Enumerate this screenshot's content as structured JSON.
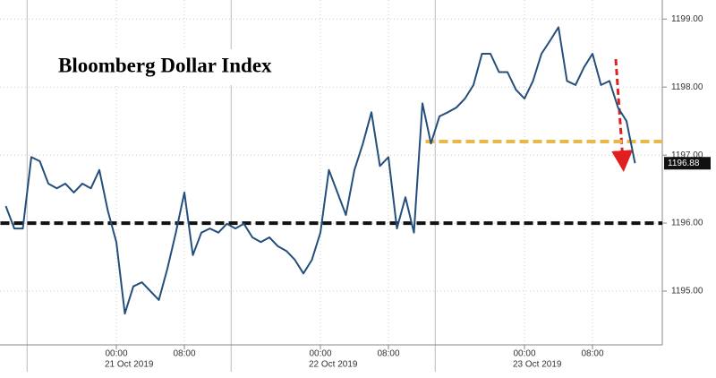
{
  "chart_data": {
    "type": "line",
    "title": "Bloomberg Dollar Index",
    "categories": [
      null,
      null,
      null,
      null,
      null,
      null,
      null,
      null,
      null,
      null,
      null,
      null,
      null,
      "00:00",
      null,
      null,
      null,
      null,
      null,
      null,
      null,
      "08:00",
      null,
      null,
      null,
      null,
      null,
      null,
      null,
      null,
      null,
      null,
      null,
      null,
      null,
      null,
      null,
      "00:00",
      null,
      null,
      null,
      null,
      null,
      null,
      null,
      "08:00",
      null,
      null,
      null,
      null,
      null,
      null,
      null,
      null,
      null,
      null,
      null,
      null,
      null,
      null,
      null,
      "00:00",
      null,
      null,
      null,
      null,
      null,
      null,
      null,
      "08:00",
      null,
      null,
      null,
      null,
      null
    ],
    "date_labels": [
      "21 Oct 2019",
      "22 Oct 2019",
      "23 Oct 2019"
    ],
    "series": [
      {
        "name": "Bloomberg Dollar Index",
        "color": "#244f7c",
        "values": [
          1196.25,
          1195.92,
          1195.92,
          1196.97,
          1196.91,
          1196.58,
          1196.51,
          1196.58,
          1196.45,
          1196.58,
          1196.51,
          1196.78,
          1196.18,
          1195.72,
          1194.67,
          1195.07,
          1195.13,
          1195.0,
          1194.87,
          1195.33,
          1195.86,
          1196.45,
          1195.53,
          1195.86,
          1195.92,
          1195.86,
          1195.99,
          1195.92,
          1195.99,
          1195.79,
          1195.72,
          1195.79,
          1195.66,
          1195.59,
          1195.46,
          1195.26,
          1195.46,
          1195.86,
          1196.78,
          1196.45,
          1196.12,
          1196.78,
          1197.17,
          1197.63,
          1196.84,
          1196.97,
          1195.92,
          1196.38,
          1195.86,
          1197.76,
          1197.17,
          1197.57,
          1197.63,
          1197.7,
          1197.83,
          1198.03,
          1198.49,
          1198.49,
          1198.22,
          1198.22,
          1197.96,
          1197.83,
          1198.09,
          1198.49,
          1198.68,
          1198.88,
          1198.09,
          1198.03,
          1198.29,
          1198.49,
          1198.03,
          1198.09,
          1197.7,
          1197.5,
          1196.88
        ]
      }
    ],
    "ylim": [
      1194.21,
      1199.28
    ],
    "yticks": [
      {
        "value": 1195,
        "label": "1195.00"
      },
      {
        "value": 1196,
        "label": "1196.00"
      },
      {
        "value": 1197,
        "label": "1197.00"
      },
      {
        "value": 1198,
        "label": "1198.00"
      },
      {
        "value": 1199,
        "label": "1199.00"
      }
    ],
    "grid": true,
    "reference_lines": [
      {
        "value": 1196,
        "color": "#111111",
        "from_index": 0
      },
      {
        "value": 1197.2,
        "color": "#e8b84a",
        "from_index": 50
      }
    ]
  }
}
